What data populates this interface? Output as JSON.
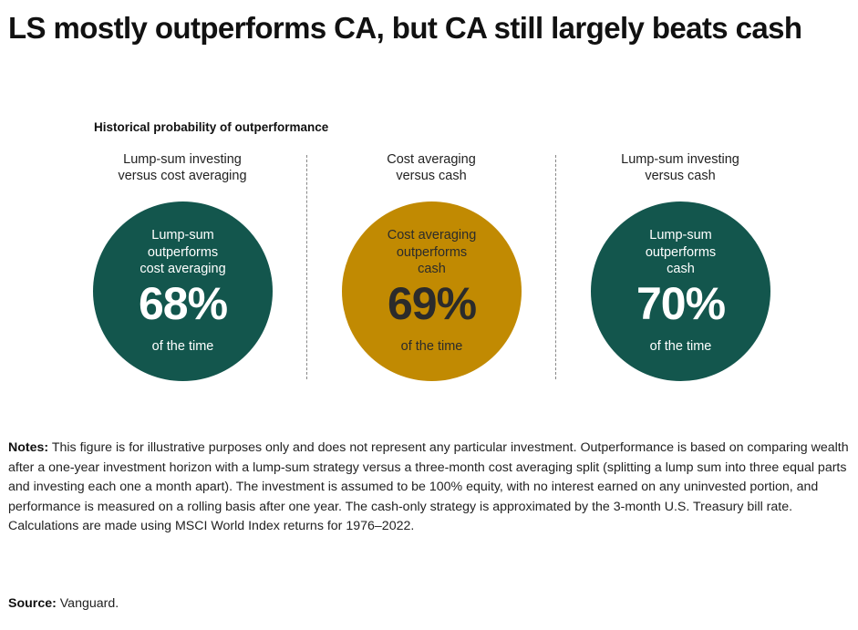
{
  "title": "LS mostly outperforms CA, but CA still largely beats cash",
  "chart_data": {
    "type": "bubble-percent",
    "subtitle": "Historical probability of outperformance",
    "panels": [
      {
        "label": "Lump-sum investing\nversus cost averaging",
        "circle_text": "Lump-sum\noutperforms\ncost averaging",
        "value": 68,
        "value_label": "68%",
        "sub": "of the time",
        "color": "#13564d",
        "text_color": "#ffffff"
      },
      {
        "label": "Cost averaging\nversus cash",
        "circle_text": "Cost averaging\noutperforms\ncash",
        "value": 69,
        "value_label": "69%",
        "sub": "of the time",
        "color": "#c18a02",
        "text_color": "#2b2b2b"
      },
      {
        "label": "Lump-sum investing\nversus cash",
        "circle_text": "Lump-sum\noutperforms\ncash",
        "value": 70,
        "value_label": "70%",
        "sub": "of the time",
        "color": "#13564d",
        "text_color": "#ffffff"
      }
    ]
  },
  "notes": {
    "label": "Notes:",
    "text": " This figure is for illustrative purposes only and does not represent any particular investment. Outperformance is based on comparing wealth after a one-year investment horizon with a lump-sum strategy versus a three-month cost averaging split (splitting a lump sum into three equal parts and investing each one a month apart). The investment is assumed to be 100% equity, with no interest earned on any uninvested portion, and performance is measured on a rolling basis after one year. The cash-only strategy is approximated by the 3-month U.S. Treasury bill rate. Calculations are made using MSCI World Index returns for 1976–2022."
  },
  "source": {
    "label": "Source:",
    "text": " Vanguard."
  }
}
